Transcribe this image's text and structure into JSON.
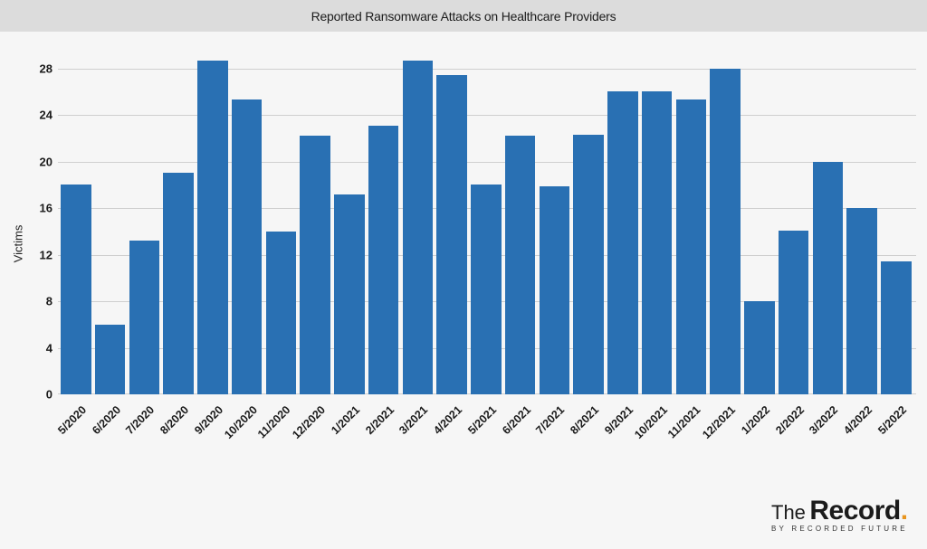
{
  "header": {
    "title": "Reported Ransomware Attacks on Healthcare Providers"
  },
  "logo": {
    "prefix": "The",
    "name": "Record",
    "dot": ".",
    "tagline": "BY RECORDED FUTURE",
    "accent_color": "#e8951f"
  },
  "colors": {
    "bar": "#2970b3",
    "background": "#f6f6f6",
    "title_band": "#dcdcdc",
    "grid": "#cfcfcf"
  },
  "chart_data": {
    "type": "bar",
    "title": "Reported Ransomware Attacks on Healthcare Providers",
    "xlabel": "",
    "ylabel": "Victims",
    "ylim": [
      0,
      30.8
    ],
    "yticks": [
      0,
      4,
      8,
      12,
      16,
      20,
      24,
      28
    ],
    "grid": true,
    "legend": null,
    "categories": [
      "5/2020",
      "6/2020",
      "7/2020",
      "8/2020",
      "9/2020",
      "10/2020",
      "11/2020",
      "12/2020",
      "1/2021",
      "2/2021",
      "3/2021",
      "4/2021",
      "5/2021",
      "6/2021",
      "7/2021",
      "8/2021",
      "9/2021",
      "10/2021",
      "11/2021",
      "12/2021",
      "1/2022",
      "2/2022",
      "3/2022",
      "4/2022",
      "5/2022"
    ],
    "values": [
      18,
      6,
      13.2,
      19,
      28.7,
      25.3,
      14,
      22.2,
      17.2,
      23.1,
      28.7,
      27.4,
      18,
      22.2,
      17.9,
      22.3,
      26,
      26,
      25.3,
      28,
      8,
      14.1,
      20,
      16,
      11.4
    ]
  }
}
